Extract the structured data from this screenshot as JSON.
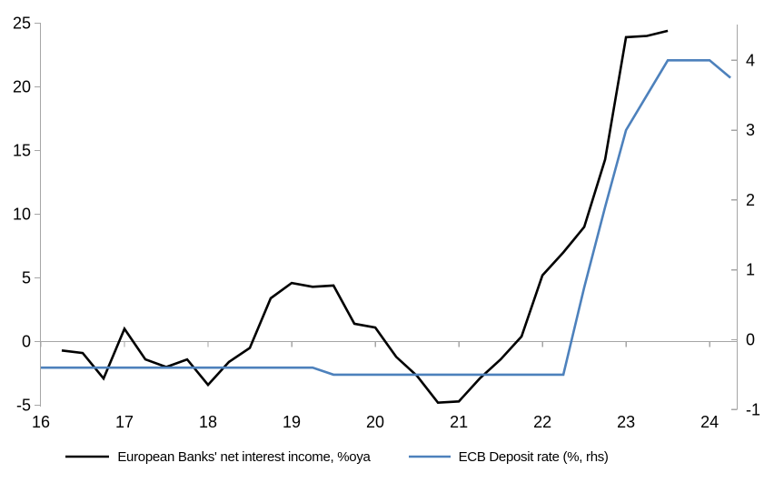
{
  "chart_data": {
    "type": "line",
    "title": "",
    "grid": "zero-line-only",
    "legend_position": "bottom",
    "x_axis": {
      "range": [
        16,
        24.33
      ],
      "ticks": [
        16,
        17,
        18,
        19,
        20,
        21,
        22,
        23,
        24
      ],
      "tick_labels": [
        "16",
        "17",
        "18",
        "19",
        "20",
        "21",
        "22",
        "23",
        "24"
      ]
    },
    "left_axis": {
      "range": [
        -5,
        25
      ],
      "ticks": [
        -5,
        0,
        5,
        10,
        15,
        20,
        25
      ],
      "tick_labels": [
        "-5",
        "0",
        "5",
        "10",
        "15",
        "20",
        "25"
      ]
    },
    "right_axis": {
      "range": [
        -1,
        4.5
      ],
      "ticks": [
        -1,
        0,
        1,
        2,
        3,
        4
      ],
      "tick_labels": [
        "-1",
        "0",
        "1",
        "2",
        "3",
        "4"
      ]
    },
    "series": [
      {
        "name": "European Banks' net interest income, %oya",
        "axis": "left",
        "color": "#000000",
        "x": [
          16.25,
          16.5,
          16.75,
          17.0,
          17.25,
          17.5,
          17.75,
          18.0,
          18.25,
          18.5,
          18.75,
          19.0,
          19.25,
          19.5,
          19.75,
          20.0,
          20.25,
          20.5,
          20.75,
          21.0,
          21.25,
          21.5,
          21.75,
          22.0,
          22.25,
          22.5,
          22.75,
          23.0,
          23.25,
          23.5
        ],
        "values": [
          -0.7,
          -0.9,
          -2.9,
          1.0,
          -1.4,
          -2.0,
          -1.4,
          -3.4,
          -1.6,
          -0.5,
          3.4,
          4.6,
          4.3,
          4.4,
          1.4,
          1.1,
          -1.2,
          -2.7,
          -4.8,
          -4.7,
          -2.9,
          -1.4,
          0.4,
          5.2,
          7.0,
          9.0,
          14.3,
          23.9,
          24.0,
          24.4
        ]
      },
      {
        "name": "ECB Deposit rate (%, rhs)",
        "axis": "right",
        "color": "#4d81bc",
        "x": [
          16.0,
          16.25,
          16.5,
          16.75,
          17.0,
          17.25,
          17.5,
          17.75,
          18.0,
          18.25,
          18.5,
          18.75,
          19.0,
          19.25,
          19.5,
          19.75,
          20.0,
          20.25,
          20.5,
          20.75,
          21.0,
          21.25,
          21.5,
          21.75,
          22.0,
          22.25,
          22.5,
          22.75,
          23.0,
          23.25,
          23.5,
          23.75,
          24.0,
          24.25
        ],
        "values": [
          -0.4,
          -0.4,
          -0.4,
          -0.4,
          -0.4,
          -0.4,
          -0.4,
          -0.4,
          -0.4,
          -0.4,
          -0.4,
          -0.4,
          -0.4,
          -0.4,
          -0.5,
          -0.5,
          -0.5,
          -0.5,
          -0.5,
          -0.5,
          -0.5,
          -0.5,
          -0.5,
          -0.5,
          -0.5,
          -0.5,
          0.75,
          1.9,
          3.0,
          3.5,
          4.0,
          4.0,
          4.0,
          3.75
        ]
      }
    ]
  },
  "colors": {
    "background": "#ffffff",
    "axis": "#a6a6a6",
    "text": "#000000",
    "nii_line": "#000000",
    "ecb_line": "#4d81bc"
  }
}
